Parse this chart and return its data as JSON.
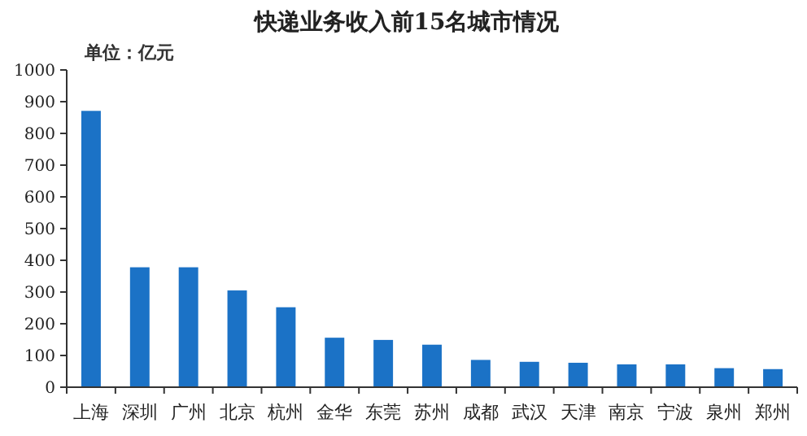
{
  "chart_data": {
    "type": "bar",
    "title": "快递业务收入前15名城市情况",
    "annotations": [
      "单位：亿元"
    ],
    "categories": [
      "上海",
      "深圳",
      "广州",
      "北京",
      "杭州",
      "金华",
      "东莞",
      "苏州",
      "成都",
      "武汉",
      "天津",
      "南京",
      "宁波",
      "泉州",
      "郑州"
    ],
    "values": [
      871,
      378,
      378,
      305,
      252,
      156,
      149,
      134,
      86,
      80,
      77,
      72,
      72,
      60,
      57
    ],
    "color": "#1b72c6",
    "ylim": [
      0,
      1000
    ],
    "yticks": [
      0,
      100,
      200,
      300,
      400,
      500,
      600,
      700,
      800,
      900,
      1000
    ],
    "grid": false
  }
}
